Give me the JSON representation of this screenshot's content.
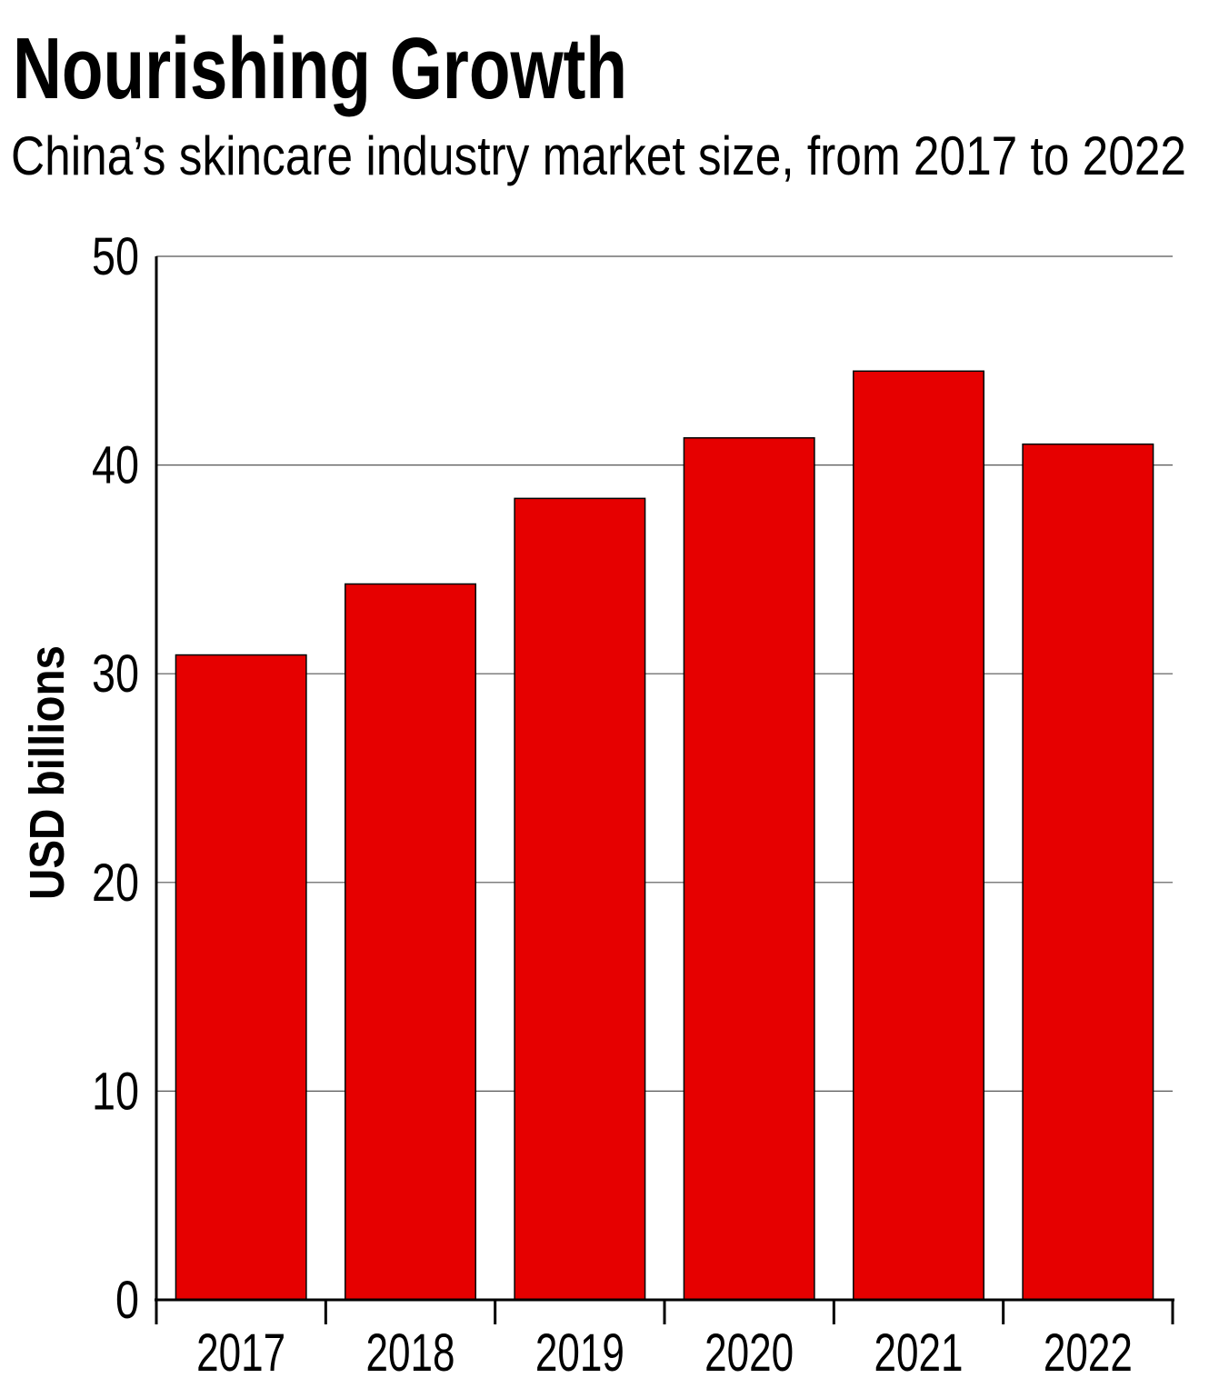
{
  "chart_data": {
    "type": "bar",
    "title": "Nourishing Growth",
    "subtitle": "China’s skincare industry market size, from 2017 to 2022",
    "xlabel": "",
    "ylabel": "USD billions",
    "categories": [
      "2017",
      "2018",
      "2019",
      "2020",
      "2021",
      "2022"
    ],
    "values": [
      30.9,
      34.3,
      38.4,
      41.3,
      44.5,
      41.0
    ],
    "ylim": [
      0,
      50
    ],
    "yticks": [
      "0",
      "10",
      "20",
      "30",
      "40",
      "50"
    ],
    "grid": true,
    "legend": "none",
    "bar_color": "#e60000",
    "grid_color": "#555555"
  }
}
